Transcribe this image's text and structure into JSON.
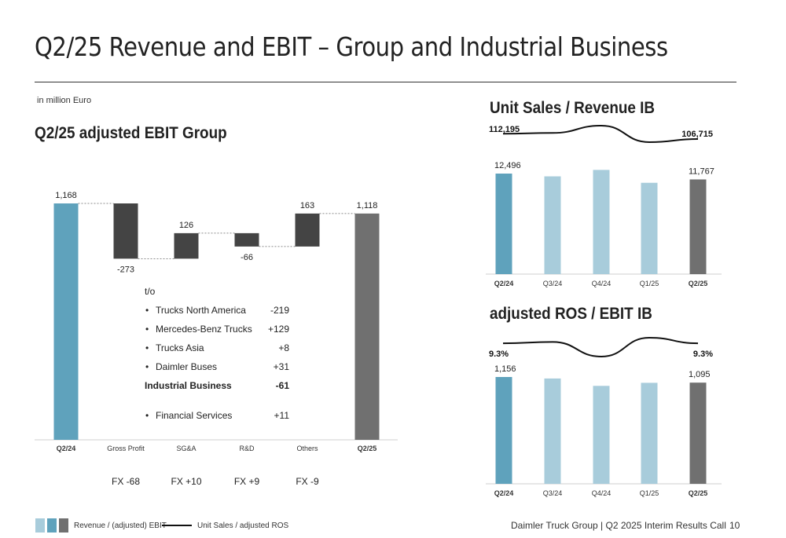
{
  "title": "Q2/25 Revenue and EBIT – Group and Industrial Business",
  "unit_note": "in million Euro",
  "sections": {
    "ebit_group": "Q2/25 adjusted EBIT Group",
    "unit_sales": "Unit Sales / Revenue IB",
    "ros": "adjusted ROS / EBIT IB"
  },
  "colors": {
    "base_blue": "#5fa2bc",
    "light_blue": "#a8ccdb",
    "dark_bar": "#444444",
    "grey_bar": "#707070"
  },
  "breakdown": {
    "header": "t/o",
    "items": [
      {
        "bullet": "•",
        "label": "Trucks North America",
        "value": "-219",
        "bold": false
      },
      {
        "bullet": "•",
        "label": "Mercedes-Benz Trucks",
        "value": "+129",
        "bold": false
      },
      {
        "bullet": "•",
        "label": "Trucks Asia",
        "value": "+8",
        "bold": false
      },
      {
        "bullet": "•",
        "label": "Daimler Buses",
        "value": "+31",
        "bold": false
      },
      {
        "bullet": "",
        "label": "Industrial Business",
        "value": "-61",
        "bold": true
      },
      {
        "bullet": "•",
        "label": "Financial Services",
        "value": "+11",
        "bold": false
      }
    ]
  },
  "fx": [
    "FX -68",
    "FX +10",
    "FX +9",
    "FX -9"
  ],
  "legend": {
    "bars_label": "Revenue / (adjusted) EBIT",
    "line_label": "Unit Sales / adjusted ROS"
  },
  "footer": "Daimler Truck Group | Q2 2025 Interim Results Call",
  "page_number": "10",
  "chart_data": [
    {
      "type": "bar",
      "subtype": "waterfall",
      "title": "Q2/25 adjusted EBIT Group",
      "categories": [
        "Q2/24",
        "Gross Profit",
        "SG&A",
        "R&D",
        "Others",
        "Q2/25"
      ],
      "values": [
        1168,
        -273,
        126,
        -66,
        163,
        1118
      ],
      "labels": [
        "1,168",
        "-273",
        "126",
        "-66",
        "163",
        "1,118"
      ],
      "bold_categories": [
        "Q2/24",
        "Q2/25"
      ],
      "kinds": [
        "total",
        "delta",
        "delta",
        "delta",
        "delta",
        "total"
      ]
    },
    {
      "type": "bar",
      "title": "Unit Sales / Revenue IB",
      "categories": [
        "Q2/24",
        "Q3/24",
        "Q4/24",
        "Q1/25",
        "Q2/25"
      ],
      "values": [
        12496,
        12150,
        12950,
        11350,
        11767
      ],
      "bar_labels": [
        "12,496",
        "",
        "",
        "",
        "11,767"
      ],
      "line": {
        "values": [
          112195,
          113000,
          120500,
          103500,
          106715
        ],
        "labels": [
          "112,195",
          "",
          "",
          "",
          "106,715"
        ]
      },
      "bold_categories": [
        "Q2/24",
        "Q2/25"
      ]
    },
    {
      "type": "bar",
      "title": "adjusted ROS / EBIT IB",
      "categories": [
        "Q2/24",
        "Q3/24",
        "Q4/24",
        "Q1/25",
        "Q2/25"
      ],
      "values": [
        1156,
        1140,
        1060,
        1093,
        1095
      ],
      "bar_labels": [
        "1,156",
        "",
        "",
        "",
        "1,095"
      ],
      "line": {
        "values": [
          9.3,
          9.5,
          7.4,
          10.1,
          9.3
        ],
        "labels": [
          "9.3%",
          "",
          "",
          "",
          "9.3%"
        ]
      },
      "bold_categories": [
        "Q2/24",
        "Q2/25"
      ]
    }
  ]
}
